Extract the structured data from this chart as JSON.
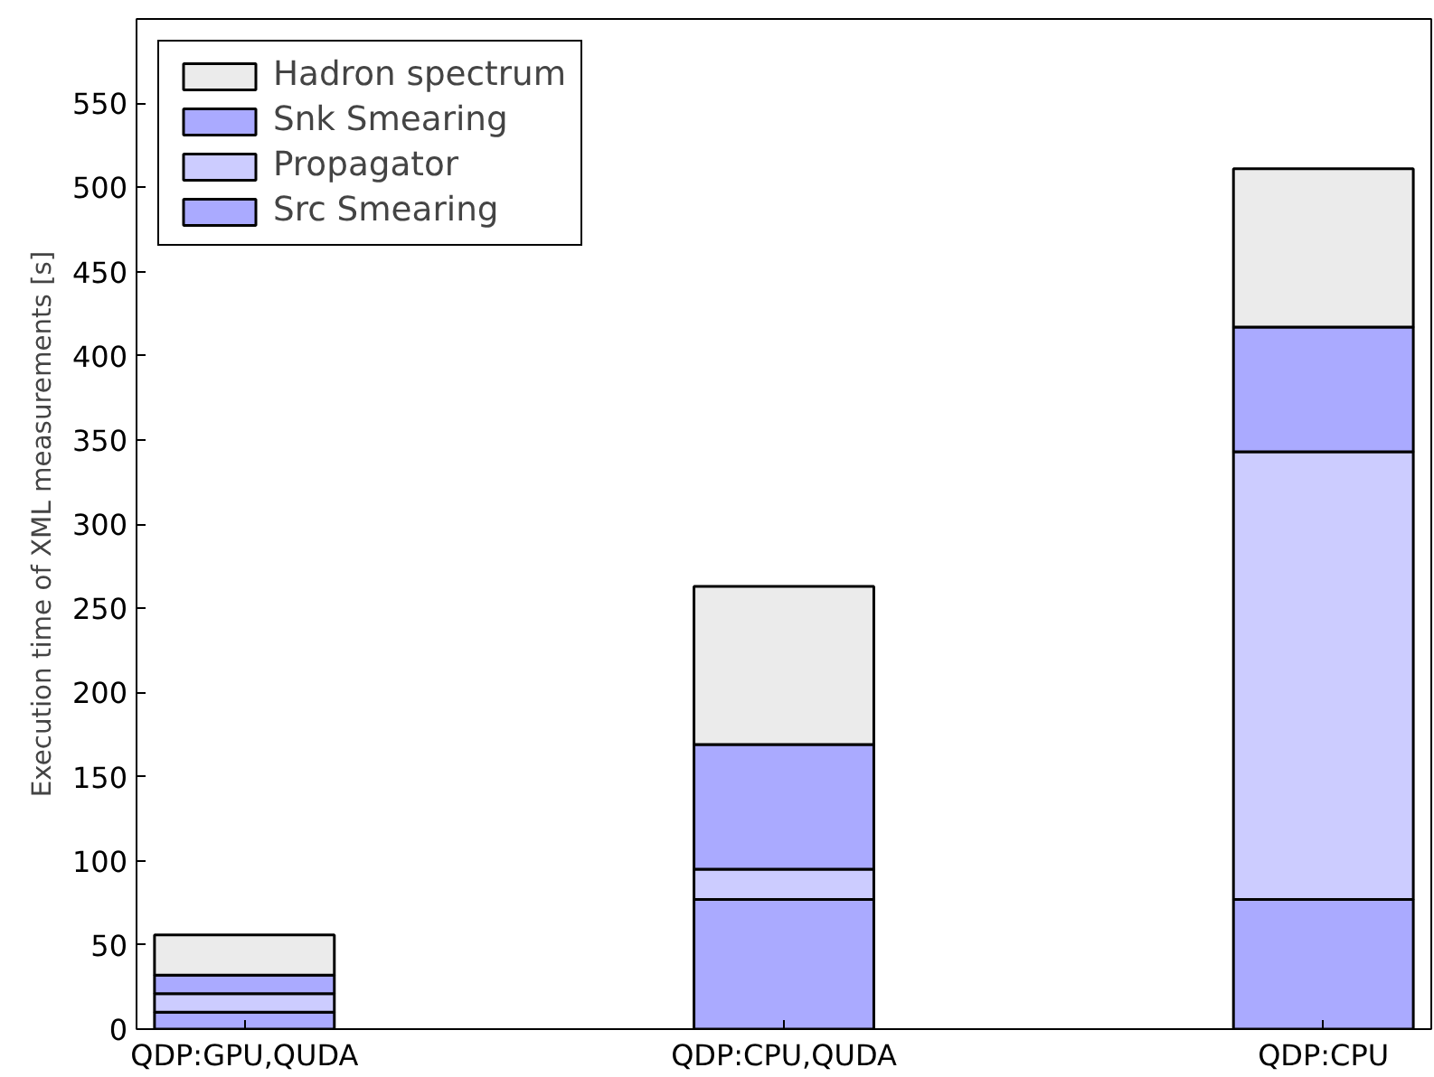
{
  "chart_data": {
    "type": "bar",
    "stacked": true,
    "ylabel": "Execution time of XML measurements [s]",
    "categories": [
      "QDP:GPU,QUDA",
      "QDP:CPU,QUDA",
      "QDP:CPU"
    ],
    "series": [
      {
        "name": "Src Smearing",
        "color": "#aaaaff",
        "values": [
          10,
          77,
          77
        ]
      },
      {
        "name": "Propagator",
        "color": "#ccccff",
        "values": [
          11,
          18,
          266
        ]
      },
      {
        "name": "Snk Smearing",
        "color": "#aaaaff",
        "values": [
          11,
          74,
          74
        ]
      },
      {
        "name": "Hadron spectrum",
        "color": "#ebebeb",
        "values": [
          24,
          94,
          94
        ]
      }
    ],
    "ylim": [
      0,
      600
    ],
    "yticks": [
      0,
      50,
      100,
      150,
      200,
      250,
      300,
      350,
      400,
      450,
      500,
      550
    ],
    "grid": false,
    "legend": "top left"
  }
}
